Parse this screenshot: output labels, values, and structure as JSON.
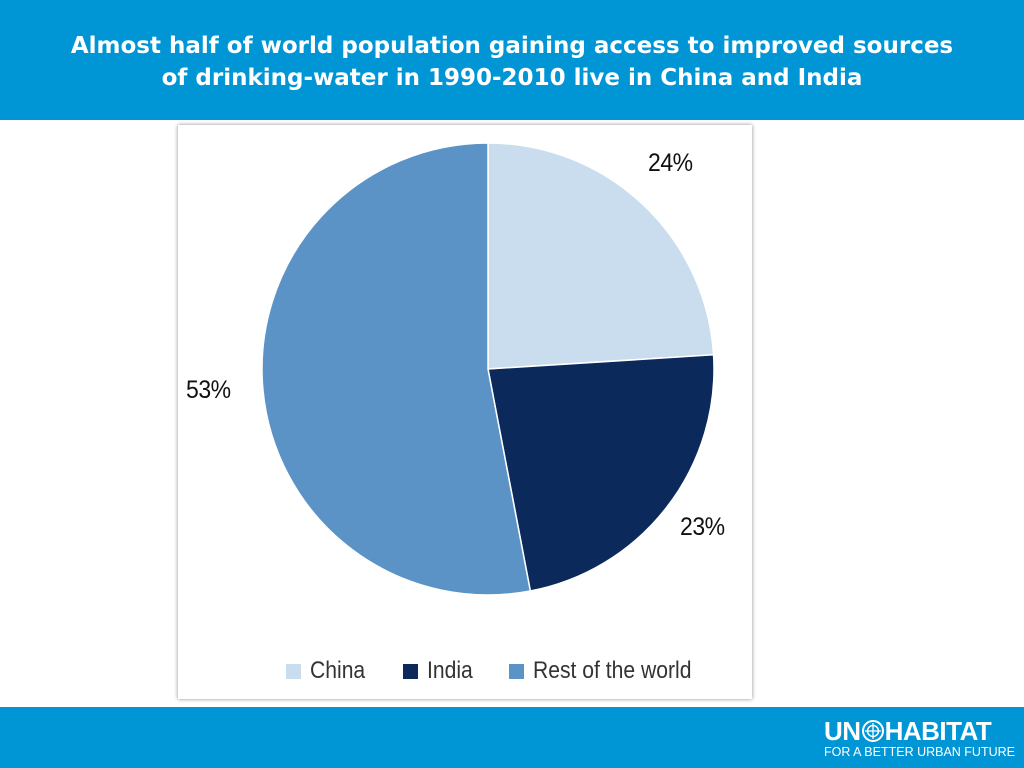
{
  "header": {
    "title_line1": "Almost half of world population gaining access to improved sources",
    "title_line2": "of drinking-water in 1990-2010 live in China and India"
  },
  "chart_data": {
    "type": "pie",
    "title": "",
    "slices": [
      {
        "name": "China",
        "value": 24,
        "label": "24%",
        "color": "#c9ddef"
      },
      {
        "name": "India",
        "value": 23,
        "label": "23%",
        "color": "#0b2a5b"
      },
      {
        "name": "Rest of the world",
        "value": 53,
        "label": "53%",
        "color": "#5b93c6"
      }
    ],
    "start_angle": "12 o'clock",
    "direction": "clockwise",
    "legend_position": "bottom"
  },
  "footer": {
    "logo_left": "UN",
    "logo_right": "HABITAT",
    "logo_tagline": "FOR A BETTER URBAN FUTURE"
  }
}
